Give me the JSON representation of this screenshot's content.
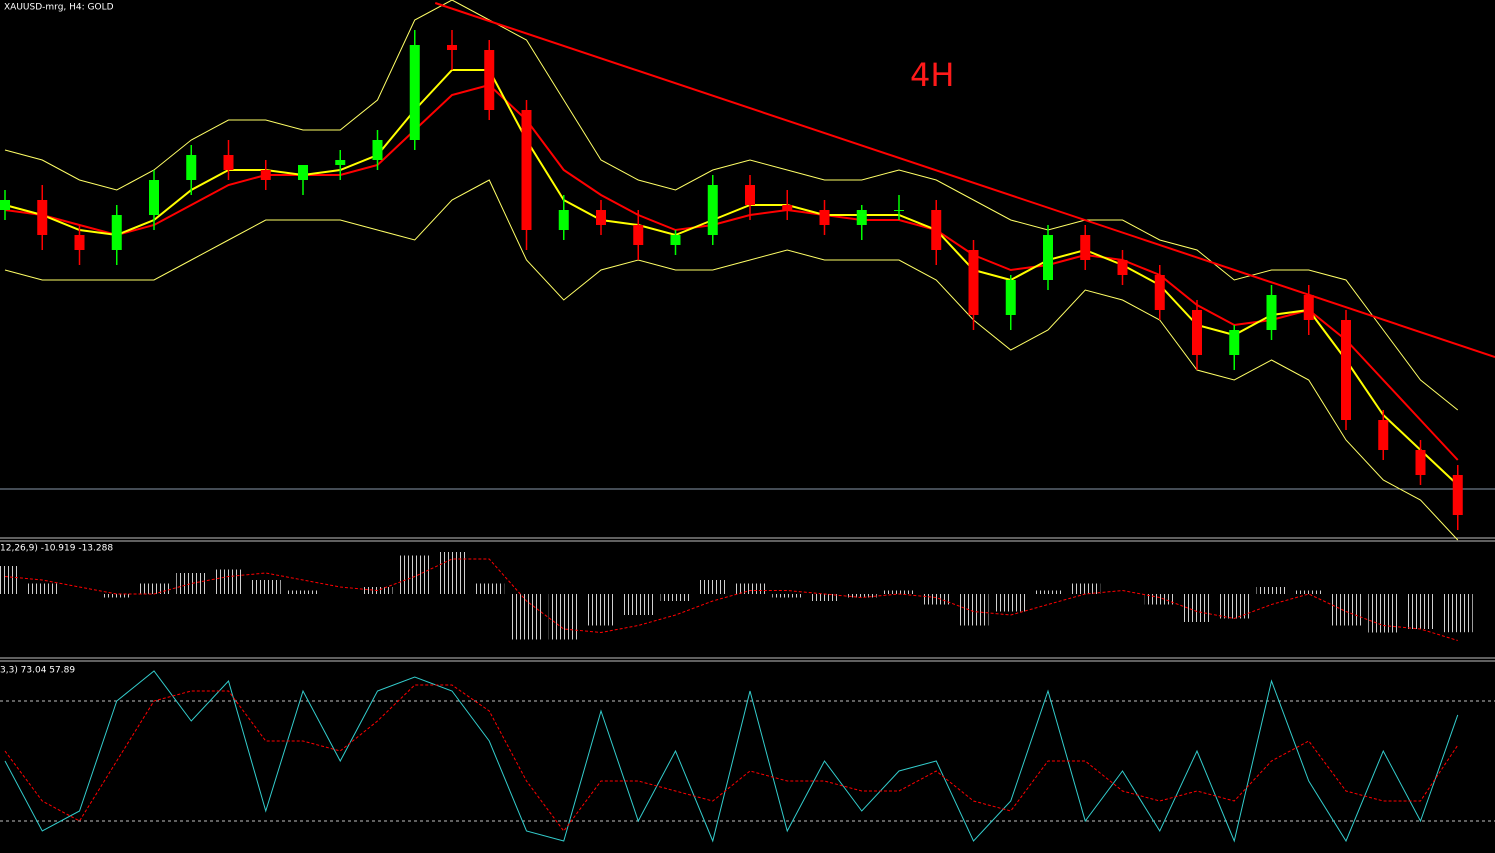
{
  "chart_data": [
    {
      "type": "candlestick",
      "title": "XAUUSD-mrg, H4:  GOLD",
      "annotation": "4H",
      "x": [
        0,
        1,
        2,
        3,
        4,
        5,
        6,
        7,
        8,
        9,
        10,
        11,
        12,
        13,
        14,
        15,
        16,
        17,
        18,
        19,
        20,
        21,
        22,
        23,
        24,
        25,
        26,
        27,
        28,
        29,
        30,
        31,
        32,
        33,
        34,
        35,
        36,
        37,
        38,
        39
      ],
      "xlim": [
        0,
        40
      ],
      "ylim": [
        0,
        54
      ],
      "up_color": "#00ff00",
      "down_color": "#ff0000",
      "open": [
        33,
        34,
        30.5,
        29,
        32.5,
        36,
        38.5,
        37,
        36,
        37.5,
        38,
        40,
        49.5,
        49,
        43,
        31,
        33,
        31.5,
        29.5,
        30.5,
        35.5,
        33.5,
        33,
        31.5,
        33,
        33,
        29,
        22.5,
        26,
        30.5,
        28,
        26.5,
        23,
        18.5,
        21,
        24.5,
        22,
        12,
        9,
        6.5
      ],
      "high": [
        35,
        35.5,
        31.5,
        33.5,
        37,
        39.5,
        40,
        38,
        37.5,
        39,
        41,
        51,
        51,
        50,
        44,
        34.5,
        34,
        33,
        31,
        36.5,
        36.5,
        35,
        34,
        33.5,
        34.5,
        34,
        30,
        26.5,
        31.5,
        31.5,
        29,
        27.5,
        24,
        21.5,
        25.5,
        25.5,
        23,
        13,
        10,
        7.5
      ],
      "low": [
        32,
        29,
        27.5,
        27.5,
        31,
        34.5,
        36,
        35,
        34.5,
        36,
        37,
        39,
        47,
        42,
        29,
        30,
        30.5,
        28,
        28.5,
        29.5,
        32,
        32,
        30.5,
        30,
        32,
        27.5,
        21,
        21,
        25,
        27,
        25.5,
        22,
        17,
        17,
        20,
        20.5,
        11,
        8,
        5.5,
        1
      ],
      "close": [
        34,
        30.5,
        29,
        32.5,
        36,
        38.5,
        37,
        36,
        37.5,
        38,
        40,
        49.5,
        49,
        43,
        31,
        33,
        31.5,
        29.5,
        30.5,
        35.5,
        33.5,
        33,
        31.5,
        33,
        33,
        29,
        22.5,
        26,
        30.5,
        28,
        26.5,
        23,
        18.5,
        21,
        24.5,
        22,
        12,
        9,
        6.5,
        2.5
      ],
      "series": [
        {
          "color": "#ffff66",
          "values": [
            39,
            38,
            36,
            35,
            37,
            40,
            42,
            42,
            41,
            41,
            44,
            52,
            54,
            52,
            50,
            44,
            38,
            36,
            35,
            37,
            38,
            37,
            36,
            36,
            37,
            36,
            34,
            32,
            31,
            32,
            32,
            30,
            29,
            26,
            27,
            27,
            26,
            21,
            16,
            13
          ]
        },
        {
          "color": "#ffff66",
          "values": [
            27,
            26,
            26,
            26,
            26,
            28,
            30,
            32,
            32,
            32,
            31,
            30,
            34,
            36,
            28,
            24,
            27,
            28,
            27,
            27,
            28,
            29,
            28,
            28,
            28,
            26,
            22,
            19,
            21,
            25,
            24,
            22,
            17,
            16,
            18,
            16,
            10,
            6,
            4,
            0
          ]
        },
        {
          "color": "#ff0000",
          "values": [
            33,
            32.5,
            31.5,
            30.5,
            31.5,
            33.5,
            35.5,
            36.5,
            36.5,
            36.5,
            37.5,
            41,
            44.5,
            45.5,
            42,
            37,
            34.5,
            32.5,
            31,
            31.5,
            32.5,
            33,
            32.5,
            32,
            32,
            31,
            28.5,
            27,
            27.5,
            28.5,
            28,
            26.5,
            23.5,
            21.5,
            22,
            23,
            20,
            16,
            12,
            8
          ]
        },
        {
          "color": "#ffff00",
          "values": [
            33.5,
            32.5,
            31,
            30.5,
            32,
            35,
            37,
            37,
            36.5,
            37,
            38.5,
            43,
            47,
            47,
            40,
            34,
            32,
            31.5,
            30.5,
            32,
            33.5,
            33.5,
            32.5,
            32.5,
            32.5,
            31,
            27,
            26,
            28,
            29,
            27.5,
            25.5,
            21.5,
            20.5,
            22.5,
            23,
            18,
            12.5,
            9,
            5.5
          ]
        }
      ],
      "trendline": {
        "x": [
          11.55,
          40
        ],
        "y": [
          53.7,
          18.3
        ],
        "color": "#ff0000"
      },
      "hline": {
        "value": 5.1,
        "color": "#8899aa"
      }
    },
    {
      "type": "macd",
      "title": "12,26,9) -10.919 -13.288",
      "x": [
        0,
        1,
        2,
        3,
        4,
        5,
        6,
        7,
        8,
        9,
        10,
        11,
        12,
        13,
        14,
        15,
        16,
        17,
        18,
        19,
        20,
        21,
        22,
        23,
        24,
        25,
        26,
        27,
        28,
        29,
        30,
        31,
        32,
        33,
        34,
        35,
        36,
        37,
        38,
        39
      ],
      "xlim": [
        0,
        40
      ],
      "ylim": [
        -18,
        14
      ],
      "series": [
        {
          "color": "#d0d0d0",
          "values": [
            8,
            3,
            0,
            -1,
            3,
            6,
            7,
            4,
            1,
            0,
            2,
            11,
            12,
            3,
            -13,
            -13,
            -9,
            -6,
            -2,
            4,
            3,
            -1,
            -2,
            -1,
            1,
            -3,
            -9,
            -5,
            1,
            3,
            0,
            -3,
            -8,
            -7,
            2,
            1,
            -9,
            -11,
            -10,
            -10.919
          ]
        },
        {
          "color": "#ff0000",
          "values": [
            5,
            4,
            2,
            0,
            0,
            3,
            5,
            6,
            4,
            2,
            1,
            5,
            10,
            10,
            -2,
            -10,
            -11,
            -9,
            -6,
            -2,
            1,
            1,
            0,
            -1,
            0,
            -1,
            -5,
            -6,
            -3,
            0,
            1,
            -1,
            -5,
            -7,
            -3,
            0,
            -5,
            -9,
            -10,
            -13.288
          ]
        }
      ]
    },
    {
      "type": "stochastic",
      "title": "3,3) 73.04 57.89",
      "x": [
        0,
        1,
        2,
        3,
        4,
        5,
        6,
        7,
        8,
        9,
        10,
        11,
        12,
        13,
        14,
        15,
        16,
        17,
        18,
        19,
        20,
        21,
        22,
        23,
        24,
        25,
        26,
        27,
        28,
        29,
        30,
        31,
        32,
        33,
        34,
        35,
        36,
        37,
        38,
        39
      ],
      "xlim": [
        0,
        40
      ],
      "ylim": [
        0,
        100
      ],
      "levels": [
        20,
        80
      ],
      "series": [
        {
          "color": "#33cccc",
          "values": [
            50,
            15,
            25,
            80,
            95,
            70,
            90,
            25,
            85,
            50,
            85,
            92,
            85,
            60,
            15,
            10,
            75,
            20,
            55,
            10,
            85,
            15,
            50,
            25,
            45,
            50,
            10,
            30,
            85,
            20,
            45,
            15,
            55,
            10,
            90,
            40,
            10,
            55,
            20,
            73.04
          ]
        },
        {
          "color": "#ff0000",
          "values": [
            55,
            30,
            20,
            50,
            80,
            85,
            85,
            60,
            60,
            55,
            70,
            88,
            88,
            75,
            40,
            15,
            40,
            40,
            35,
            30,
            45,
            40,
            40,
            35,
            35,
            45,
            30,
            25,
            50,
            50,
            35,
            30,
            35,
            30,
            50,
            60,
            35,
            30,
            30,
            57.89
          ]
        }
      ]
    }
  ]
}
